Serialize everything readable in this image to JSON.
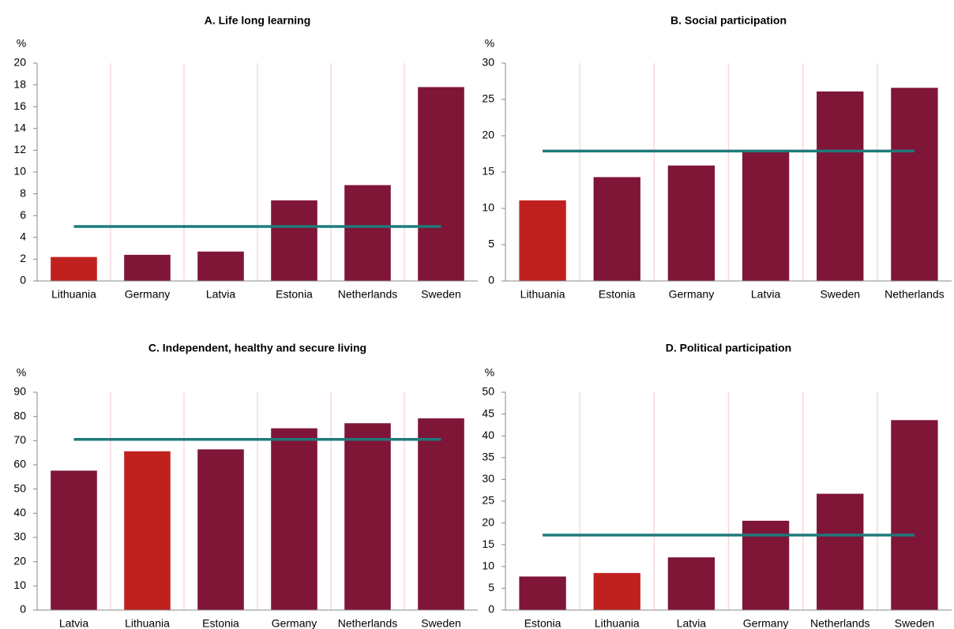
{
  "chart_data": [
    {
      "type": "bar",
      "title": "A. Life long learning",
      "ylabel": "%",
      "categories": [
        "Lithuania",
        "Germany",
        "Latvia",
        "Estonia",
        "Netherlands",
        "Sweden"
      ],
      "values": [
        2.2,
        2.4,
        2.7,
        7.4,
        8.8,
        17.8
      ],
      "colors": [
        "#c0211f",
        "#7f1537",
        "#7f1537",
        "#7f1537",
        "#7f1537",
        "#7f1537"
      ],
      "reference_line": {
        "value": 5.0,
        "color": "#1f7a7a"
      },
      "ylim": [
        0,
        20
      ],
      "yticks": [
        0,
        2,
        4,
        6,
        8,
        10,
        12,
        14,
        16,
        18,
        20
      ],
      "grid": true
    },
    {
      "type": "bar",
      "title": "B. Social participation",
      "ylabel": "%",
      "categories": [
        "Lithuania",
        "Estonia",
        "Germany",
        "Latvia",
        "Sweden",
        "Netherlands"
      ],
      "values": [
        11.1,
        14.3,
        15.9,
        17.9,
        26.1,
        26.6
      ],
      "colors": [
        "#c0211f",
        "#7f1537",
        "#7f1537",
        "#7f1537",
        "#7f1537",
        "#7f1537"
      ],
      "reference_line": {
        "value": 17.9,
        "color": "#1f7a7a"
      },
      "ylim": [
        0,
        30
      ],
      "yticks": [
        0,
        5,
        10,
        15,
        20,
        25,
        30
      ],
      "grid": true
    },
    {
      "type": "bar",
      "title": "C. Independent, healthy and secure living",
      "ylabel": "%",
      "categories": [
        "Latvia",
        "Lithuania",
        "Estonia",
        "Germany",
        "Netherlands",
        "Sweden"
      ],
      "values": [
        57.6,
        65.6,
        66.4,
        75.1,
        77.2,
        79.2
      ],
      "colors": [
        "#7f1537",
        "#c0211f",
        "#7f1537",
        "#7f1537",
        "#7f1537",
        "#7f1537"
      ],
      "reference_line": {
        "value": 70.5,
        "color": "#1f7a7a"
      },
      "ylim": [
        0,
        90
      ],
      "yticks": [
        0,
        10,
        20,
        30,
        40,
        50,
        60,
        70,
        80,
        90
      ],
      "grid": true
    },
    {
      "type": "bar",
      "title": "D. Political participation",
      "ylabel": "%",
      "categories": [
        "Estonia",
        "Lithuania",
        "Latvia",
        "Germany",
        "Netherlands",
        "Sweden"
      ],
      "values": [
        7.7,
        8.5,
        12.1,
        20.5,
        26.7,
        43.6
      ],
      "colors": [
        "#7f1537",
        "#c0211f",
        "#7f1537",
        "#7f1537",
        "#7f1537",
        "#7f1537"
      ],
      "reference_line": {
        "value": 17.2,
        "color": "#1f7a7a"
      },
      "ylim": [
        0,
        50
      ],
      "yticks": [
        0,
        5,
        10,
        15,
        20,
        25,
        30,
        35,
        40,
        45,
        50
      ],
      "grid": true
    }
  ]
}
